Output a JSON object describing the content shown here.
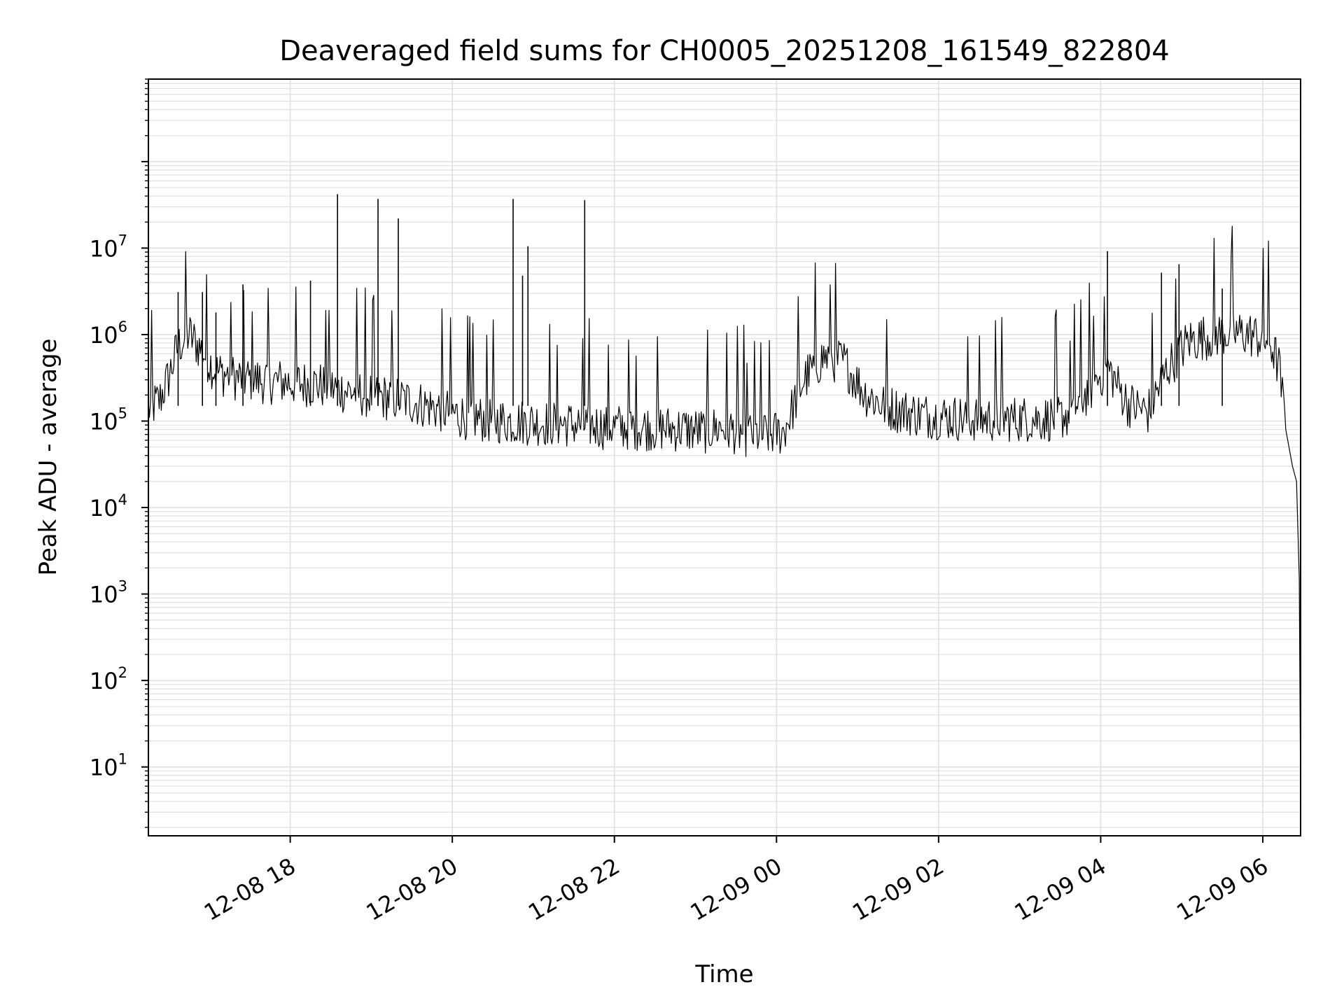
{
  "chart_data": {
    "type": "line",
    "title": "Deaveraged field sums for CH0005_20251208_161549_822804",
    "xlabel": "Time",
    "ylabel": "Peak ADU - average",
    "yscale": "log",
    "ylim": [
      1.6,
      900000000
    ],
    "xlim": [
      "2025-12-08 16:15",
      "2025-12-09 06:28"
    ],
    "x_ticks": [
      {
        "value": "2025-12-08 18:00",
        "label": "12-08 18"
      },
      {
        "value": "2025-12-08 20:00",
        "label": "12-08 20"
      },
      {
        "value": "2025-12-08 22:00",
        "label": "12-08 22"
      },
      {
        "value": "2025-12-09 00:00",
        "label": "12-09 00"
      },
      {
        "value": "2025-12-09 02:00",
        "label": "12-09 02"
      },
      {
        "value": "2025-12-09 04:00",
        "label": "12-09 04"
      },
      {
        "value": "2025-12-09 06:00",
        "label": "12-09 06"
      }
    ],
    "y_ticks": [
      {
        "value": 10,
        "base": "10",
        "exp": "1"
      },
      {
        "value": 100,
        "base": "10",
        "exp": "2"
      },
      {
        "value": 1000,
        "base": "10",
        "exp": "3"
      },
      {
        "value": 10000,
        "base": "10",
        "exp": "4"
      },
      {
        "value": 100000,
        "base": "10",
        "exp": "5"
      },
      {
        "value": 1000000,
        "base": "10",
        "exp": "6"
      },
      {
        "value": 10000000,
        "base": "10",
        "exp": "7"
      }
    ],
    "grid": true,
    "line_color": "#000000",
    "grid_color": "#e0e0e0",
    "series": [
      {
        "x": [
          "2025-12-08 16:15",
          "2025-12-08 16:23",
          "2025-12-08 16:30",
          "2025-12-08 16:37",
          "2025-12-08 16:45",
          "2025-12-08 16:55",
          "2025-12-08 17:05",
          "2025-12-08 17:20",
          "2025-12-08 17:35",
          "2025-12-08 17:50",
          "2025-12-08 18:05",
          "2025-12-08 18:20",
          "2025-12-08 18:35",
          "2025-12-08 18:50",
          "2025-12-08 19:05",
          "2025-12-08 19:20",
          "2025-12-08 19:35",
          "2025-12-08 19:50",
          "2025-12-08 20:05",
          "2025-12-08 20:20",
          "2025-12-08 20:35",
          "2025-12-08 20:50",
          "2025-12-08 21:05",
          "2025-12-08 21:20",
          "2025-12-08 21:35",
          "2025-12-08 21:50",
          "2025-12-08 22:05",
          "2025-12-08 22:20",
          "2025-12-08 22:35",
          "2025-12-08 22:50",
          "2025-12-08 23:05",
          "2025-12-08 23:20",
          "2025-12-08 23:35",
          "2025-12-08 23:50",
          "2025-12-09 00:05",
          "2025-12-09 00:20",
          "2025-12-09 00:35",
          "2025-12-09 00:50",
          "2025-12-09 01:05",
          "2025-12-09 01:20",
          "2025-12-09 01:35",
          "2025-12-09 01:50",
          "2025-12-09 02:05",
          "2025-12-09 02:20",
          "2025-12-09 02:35",
          "2025-12-09 02:50",
          "2025-12-09 03:05",
          "2025-12-09 03:20",
          "2025-12-09 03:35",
          "2025-12-09 03:50",
          "2025-12-09 04:05",
          "2025-12-09 04:20",
          "2025-12-09 04:35",
          "2025-12-09 04:50",
          "2025-12-09 05:05",
          "2025-12-09 05:20",
          "2025-12-09 05:35",
          "2025-12-09 05:50",
          "2025-12-09 06:05",
          "2025-12-09 06:12",
          "2025-12-09 06:17",
          "2025-12-09 06:22",
          "2025-12-09 06:25",
          "2025-12-09 06:27",
          "2025-12-09 06:28"
        ],
        "y": [
          130000,
          160000,
          300000,
          700000,
          950000,
          600000,
          350000,
          300000,
          280000,
          270000,
          260000,
          250000,
          220000,
          200000,
          180000,
          170000,
          150000,
          130000,
          110000,
          100000,
          95000,
          92000,
          90000,
          88000,
          85000,
          82000,
          80000,
          80000,
          78000,
          76000,
          72000,
          80000,
          68000,
          65000,
          70000,
          280000,
          520000,
          450000,
          200000,
          140000,
          120000,
          110000,
          105000,
          100000,
          100000,
          100000,
          100000,
          100000,
          110000,
          200000,
          400000,
          150000,
          120000,
          400000,
          800000,
          900000,
          1000000,
          950000,
          800000,
          400000,
          80000,
          30000,
          20000,
          1500,
          4
        ]
      }
    ],
    "spikes": [
      {
        "x": "2025-12-08 16:37",
        "y": 3100000
      },
      {
        "x": "2025-12-08 16:55",
        "y": 3100000
      },
      {
        "x": "2025-12-08 17:05",
        "y": 1800000
      },
      {
        "x": "2025-12-08 17:25",
        "y": 3800000
      },
      {
        "x": "2025-12-08 18:15",
        "y": 4200000
      },
      {
        "x": "2025-12-08 18:35",
        "y": 42000000
      },
      {
        "x": "2025-12-08 19:05",
        "y": 37000000
      },
      {
        "x": "2025-12-08 19:20",
        "y": 22000000
      },
      {
        "x": "2025-12-08 20:45",
        "y": 37000000
      },
      {
        "x": "2025-12-08 20:52",
        "y": 4800000
      },
      {
        "x": "2025-12-08 20:56",
        "y": 10500000
      },
      {
        "x": "2025-12-08 21:38",
        "y": 36000000
      },
      {
        "x": "2025-12-09 04:05",
        "y": 9200000
      },
      {
        "x": "2025-12-09 04:45",
        "y": 5200000
      },
      {
        "x": "2025-12-09 04:58",
        "y": 6500000
      },
      {
        "x": "2025-12-09 05:30",
        "y": 3400000
      }
    ]
  }
}
